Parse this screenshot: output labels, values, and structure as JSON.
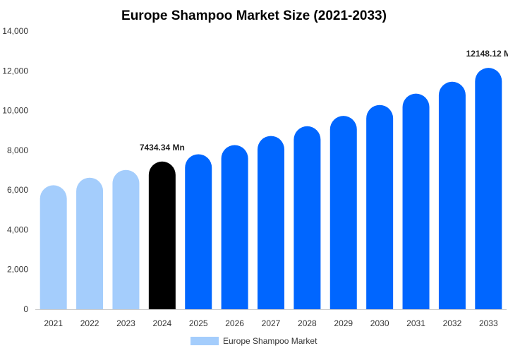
{
  "chart_data": {
    "type": "bar",
    "title": "Europe Shampoo Market Size (2021-2033)",
    "categories": [
      "2021",
      "2022",
      "2023",
      "2024",
      "2025",
      "2026",
      "2027",
      "2028",
      "2029",
      "2030",
      "2031",
      "2032",
      "2033"
    ],
    "series": [
      {
        "name": "Europe Shampoo Market",
        "values": [
          6240,
          6620,
          7010,
          7434.34,
          7800,
          8260,
          8720,
          9210,
          9730,
          10280,
          10850,
          11450,
          12148.12
        ]
      }
    ],
    "yticks": [
      "0",
      "2,000",
      "4,000",
      "6,000",
      "8,000",
      "10,000",
      "12,000",
      "14,000"
    ],
    "ylim": [
      0,
      14000
    ],
    "annotations": [
      {
        "category": "2024",
        "text": "7434.34 Mn"
      },
      {
        "category": "2033",
        "text": "12148.12 M"
      }
    ],
    "colors": {
      "historical": "#a4cdfc",
      "current": "#000000",
      "forecast": "#0066ff"
    },
    "historical_count": 3,
    "current_index": 3,
    "legend": "bottom",
    "grid": false
  }
}
